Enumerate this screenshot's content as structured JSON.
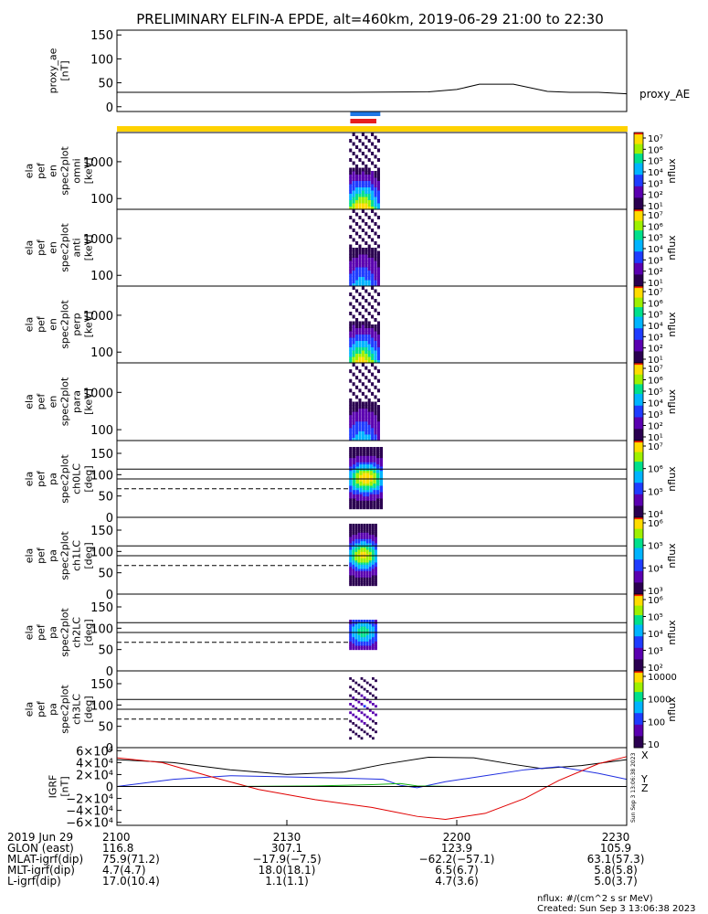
{
  "title": "PRELIMINARY ELFIN-A EPDE, alt=460km, 2019-06-29 21:00 to 22:30",
  "colors": {
    "bar_yellow": "#ffd200",
    "bar_blue": "#1e78e6",
    "bar_red": "#e61e1e",
    "bx": "#000000",
    "by": "#1f2ee0",
    "bz": "#e00000",
    "bt": "#10b010"
  },
  "chart_data": [
    {
      "type": "line",
      "id": "proxy_ae",
      "ylabel": [
        "proxy_ae",
        "[nT]"
      ],
      "yticks": [
        "150",
        "100",
        "50",
        "0"
      ],
      "ylim": [
        -10,
        160
      ],
      "series": [
        {
          "name": "proxy_AE",
          "x_min": [
            0,
            20,
            40,
            55,
            60,
            64,
            70,
            76,
            80,
            85,
            90,
            90
          ],
          "values": [
            30,
            30,
            30,
            31,
            36,
            47,
            47,
            32,
            30,
            30,
            27,
            18
          ]
        }
      ],
      "xlim": [
        0,
        90
      ]
    },
    {
      "type": "heatmap",
      "id": "pef_en_omni",
      "ylabel": [
        "ela",
        "pef",
        "en",
        "spec2plot",
        "omni",
        "[keV]"
      ],
      "yticks": [
        "1000",
        "100"
      ],
      "colorbar_ticks": [
        "10⁷",
        "10⁶",
        "10⁵",
        "10⁴",
        "10³",
        "10²",
        "10¹"
      ],
      "colorbar_label": "nflux",
      "scale": "log",
      "active_window_min": [
        41,
        46.5
      ]
    },
    {
      "type": "heatmap",
      "id": "pef_en_anti",
      "ylabel": [
        "ela",
        "pef",
        "en",
        "spec2plot",
        "anti",
        "[keV]"
      ],
      "yticks": [
        "1000",
        "100"
      ],
      "colorbar_ticks": [
        "10⁷",
        "10⁶",
        "10⁵",
        "10⁴",
        "10³",
        "10²",
        "10¹"
      ],
      "colorbar_label": "nflux",
      "scale": "log",
      "active_window_min": [
        41,
        46.5
      ]
    },
    {
      "type": "heatmap",
      "id": "pef_en_perp",
      "ylabel": [
        "ela",
        "pef",
        "en",
        "spec2plot",
        "perp",
        "[keV]"
      ],
      "yticks": [
        "1000",
        "100"
      ],
      "colorbar_ticks": [
        "10⁷",
        "10⁶",
        "10⁵",
        "10⁴",
        "10³",
        "10²",
        "10¹"
      ],
      "colorbar_label": "nflux",
      "scale": "log",
      "active_window_min": [
        41,
        46.5
      ]
    },
    {
      "type": "heatmap",
      "id": "pef_en_para",
      "ylabel": [
        "ela",
        "pef",
        "en",
        "spec2plot",
        "para",
        "[keV]"
      ],
      "yticks": [
        "1000",
        "100"
      ],
      "colorbar_ticks": [
        "10⁷",
        "10⁶",
        "10⁵",
        "10⁴",
        "10³",
        "10²",
        "10¹"
      ],
      "colorbar_label": "nflux",
      "scale": "log",
      "active_window_min": [
        41,
        46.5
      ]
    },
    {
      "type": "heatmap",
      "id": "pef_pa_ch0LC",
      "ylabel": [
        "ela",
        "pef",
        "pa",
        "spec2plot",
        "ch0LC",
        "[deg]"
      ],
      "yticks": [
        "150",
        "100",
        "50",
        "0"
      ],
      "ylim": [
        0,
        180
      ],
      "colorbar_ticks": [
        "10⁷",
        "10⁶",
        "10⁵",
        "10⁴"
      ],
      "colorbar_label": "nflux",
      "scale": "log",
      "active_window_min": [
        41,
        47
      ]
    },
    {
      "type": "heatmap",
      "id": "pef_pa_ch1LC",
      "ylabel": [
        "ela",
        "pef",
        "pa",
        "spec2plot",
        "ch1LC",
        "[deg]"
      ],
      "yticks": [
        "150",
        "100",
        "50",
        "0"
      ],
      "ylim": [
        0,
        180
      ],
      "colorbar_ticks": [
        "10⁶",
        "10⁵",
        "10⁴",
        "10³"
      ],
      "colorbar_label": "nflux",
      "scale": "log",
      "active_window_min": [
        41,
        46
      ]
    },
    {
      "type": "heatmap",
      "id": "pef_pa_ch2LC",
      "ylabel": [
        "ela",
        "pef",
        "pa",
        "spec2plot",
        "ch2LC",
        "[deg]"
      ],
      "yticks": [
        "150",
        "100",
        "50",
        "0"
      ],
      "ylim": [
        0,
        180
      ],
      "colorbar_ticks": [
        "10⁶",
        "10⁵",
        "10⁴",
        "10³",
        "10²"
      ],
      "colorbar_label": "nflux",
      "scale": "log",
      "active_window_min": [
        41,
        46
      ]
    },
    {
      "type": "heatmap",
      "id": "pef_pa_ch3LC",
      "ylabel": [
        "ela",
        "pef",
        "pa",
        "spec2plot",
        "ch3LC",
        "[deg]"
      ],
      "yticks": [
        "150",
        "100",
        "50",
        "0"
      ],
      "ylim": [
        0,
        180
      ],
      "colorbar_ticks": [
        "10000",
        "1000",
        "100",
        "10"
      ],
      "colorbar_label": "nflux",
      "scale": "log",
      "active_window_min": [
        41,
        46
      ]
    },
    {
      "type": "line",
      "id": "igrf",
      "ylabel": [
        "IGRF",
        "[nT]"
      ],
      "yticks": [
        "6×10⁴",
        "4×10⁴",
        "2×10⁴",
        "0",
        "−2×10⁴",
        "−4×10⁴",
        "−6×10⁴"
      ],
      "ylim": [
        -65000,
        65000
      ],
      "legend": [
        "X",
        "Y",
        "Z"
      ],
      "series": [
        {
          "name": "X",
          "color_key": "bx",
          "x_min": [
            0,
            10,
            20,
            30,
            40,
            47,
            55,
            63,
            70,
            75,
            82,
            90
          ],
          "values": [
            45000,
            40000,
            28000,
            20000,
            24000,
            37000,
            49000,
            48000,
            37000,
            30000,
            35000,
            45000
          ]
        },
        {
          "name": "Y",
          "color_key": "by",
          "x_min": [
            0,
            10,
            20,
            30,
            40,
            47,
            50,
            53,
            58,
            65,
            72,
            78,
            85,
            90
          ],
          "values": [
            0,
            12000,
            18000,
            16000,
            14000,
            12000,
            2000,
            -2000,
            8000,
            18000,
            28000,
            33000,
            22000,
            12000
          ]
        },
        {
          "name": "Z",
          "color_key": "bz",
          "x_min": [
            0,
            8,
            16,
            25,
            35,
            45,
            53,
            58,
            65,
            72,
            78,
            85,
            90
          ],
          "values": [
            48000,
            40000,
            18000,
            -5000,
            -22000,
            -35000,
            -50000,
            -55000,
            -45000,
            -20000,
            10000,
            38000,
            50000
          ]
        },
        {
          "name": "",
          "color_key": "bt",
          "x_min": [
            0,
            20,
            35,
            45,
            50,
            53,
            60,
            90
          ],
          "values": [
            0,
            0,
            1000,
            3000,
            5000,
            1000,
            0,
            0
          ]
        }
      ],
      "xlim": [
        0,
        90
      ]
    }
  ],
  "footer": {
    "row_labels": [
      "2019 Jun 29",
      "GLON (east)",
      "MLAT-igrf(dip)",
      "MLT-igrf(dip)",
      "L-igrf(dip)"
    ],
    "columns": [
      {
        "time": "2100",
        "glon": "116.8",
        "mlat": "75.9(71.2)",
        "mlt": "4.7(4.7)",
        "l": "17.0(10.4)"
      },
      {
        "time": "2130",
        "glon": "307.1",
        "mlat": "−17.9(−7.5)",
        "mlt": "18.0(18.1)",
        "l": "1.1(1.1)"
      },
      {
        "time": "2200",
        "glon": "123.9",
        "mlat": "−62.2(−57.1)",
        "mlt": "6.5(6.7)",
        "l": "4.7(3.6)"
      },
      {
        "time": "2230",
        "glon": "105.9",
        "mlat": "63.1(57.3)",
        "mlt": "5.8(5.8)",
        "l": "5.0(3.7)"
      }
    ],
    "units_note": "nflux: #/(cm^2 s sr MeV)",
    "created": "Created: Sun Sep  3 13:06:38 2023",
    "side_stamp": "Sun Sep  3 13:06:38 2023"
  }
}
